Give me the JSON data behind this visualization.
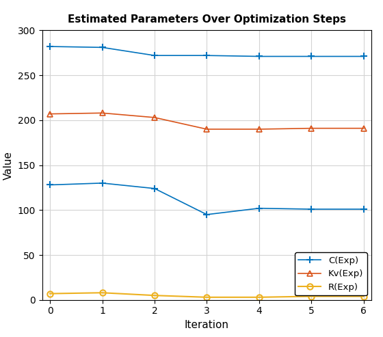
{
  "title": "Estimated Parameters Over Optimization Steps",
  "xlabel": "Iteration",
  "ylabel": "Value",
  "iterations": [
    0,
    1,
    2,
    3,
    4,
    5,
    6
  ],
  "C_lower": [
    128,
    130,
    124,
    95,
    102,
    101,
    101
  ],
  "C_upper": [
    282,
    281,
    272,
    272,
    271,
    271,
    271
  ],
  "Kv_Exp": [
    207,
    208,
    203,
    190,
    190,
    191,
    191
  ],
  "R_Exp": [
    7,
    8,
    5,
    3,
    3,
    4,
    4
  ],
  "ylim": [
    0,
    300
  ],
  "xlim": [
    -0.15,
    6.15
  ],
  "C_color": "#0072BD",
  "Kv_color": "#D95319",
  "R_color": "#EDB120",
  "legend_labels": [
    "C(Exp)",
    "Kv(Exp)",
    "R(Exp)"
  ],
  "grid_color": "#D3D3D3",
  "bg_color": "#FFFFFF",
  "title_fontsize": 11,
  "label_fontsize": 11
}
